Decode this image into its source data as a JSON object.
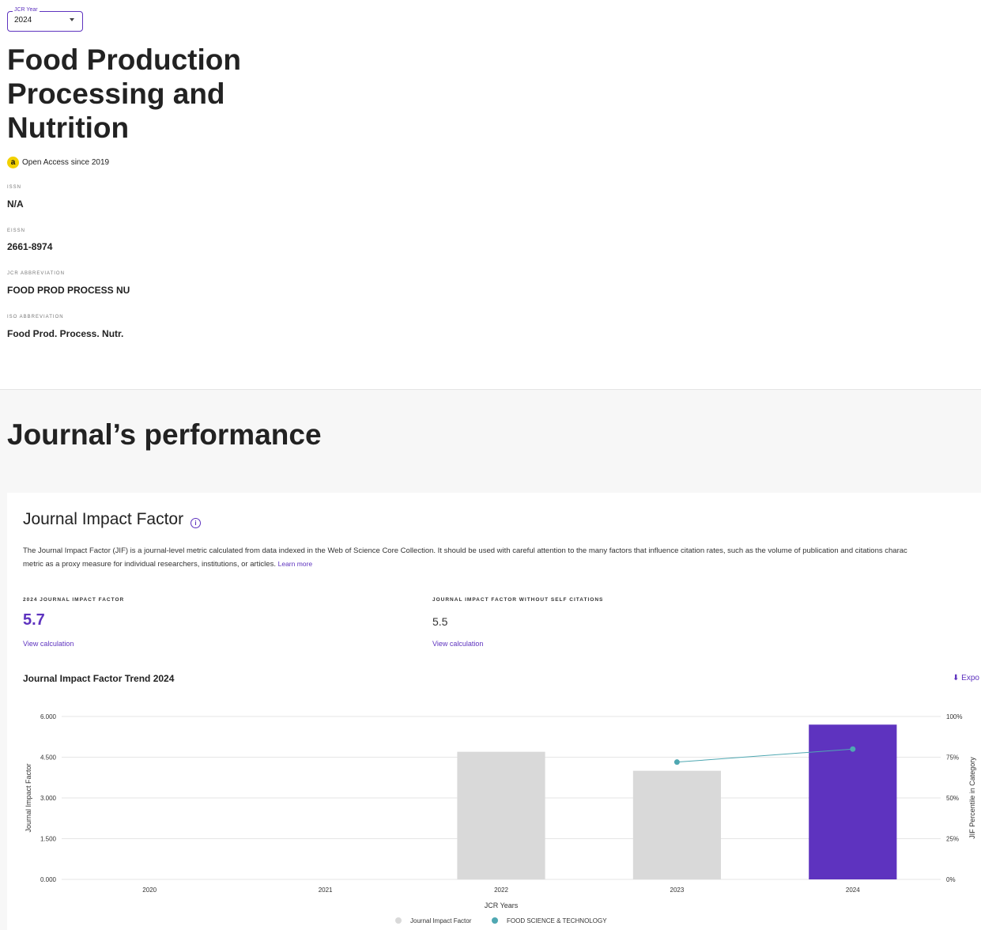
{
  "year_select": {
    "label": "JCR Year",
    "value": "2024"
  },
  "journal": {
    "title": "Food Production Processing and Nutrition",
    "open_access": "Open Access since 2019",
    "oa_icon": "open-access-lock-icon",
    "oa_icon_glyph": "a",
    "meta": [
      {
        "label": "ISSN",
        "value": "N/A"
      },
      {
        "label": "EISSN",
        "value": "2661-8974"
      },
      {
        "label": "JCR ABBREVIATION",
        "value": "FOOD PROD PROCESS NU"
      },
      {
        "label": "ISO ABBREVIATION",
        "value": "Food Prod. Process. Nutr."
      }
    ]
  },
  "performance": {
    "title": "Journal’s performance",
    "jif": {
      "title": "Journal Impact Factor",
      "info_glyph": "i",
      "description_line1": "The Journal Impact Factor (JIF) is a journal-level metric calculated from data indexed in the Web of Science Core Collection. It should be used with careful attention to the many factors that influence citation rates, such as the volume of publication and citations charac",
      "description_line2": "metric as a proxy measure for individual researchers, institutions, or articles.",
      "learn_more": "Learn more",
      "stat1_label": "2024 JOURNAL IMPACT FACTOR",
      "stat1_value": "5.7",
      "stat2_label": "JOURNAL IMPACT FACTOR WITHOUT SELF CITATIONS",
      "stat2_value": "5.5",
      "view_calc": "View calculation",
      "trend_title": "Journal Impact Factor Trend 2024",
      "export": "Expo",
      "export_icon": "download-icon"
    }
  },
  "colors": {
    "accent": "#5e33bf",
    "bar_gray": "#d9d9d9",
    "line_teal": "#4fa8b2",
    "oa_yellow": "#f2d100"
  },
  "chart_data": {
    "type": "bar",
    "categories": [
      "2020",
      "2021",
      "2022",
      "2023",
      "2024"
    ],
    "series": [
      {
        "name": "Journal Impact Factor",
        "values": [
          null,
          null,
          4.7,
          4.0,
          5.7
        ]
      },
      {
        "name": "FOOD SCIENCE & TECHNOLOGY",
        "type": "line",
        "axis": "right",
        "values": [
          null,
          null,
          null,
          72,
          80
        ]
      }
    ],
    "xlabel": "JCR Years",
    "ylabel": "Journal Impact Factor",
    "ylabel_right": "JIF Percentile in Category",
    "ylim": [
      0,
      6
    ],
    "ylim_right": [
      0,
      100
    ],
    "yticks": [
      "0.000",
      "1.500",
      "3.000",
      "4.500",
      "6.000"
    ],
    "yticks_right": [
      "0%",
      "25%",
      "50%",
      "75%",
      "100%"
    ],
    "highlight_category": "2024",
    "grid": true,
    "legend": "bottom"
  }
}
